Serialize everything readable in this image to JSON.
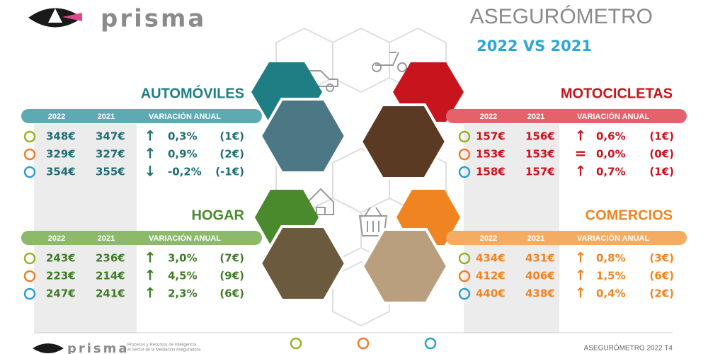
{
  "header": {
    "brand": "prisma",
    "title": "ASEGURÓMETRO",
    "subtitle": "2022 VS 2021"
  },
  "sections": [
    {
      "title": "AUTOMÓVILES",
      "columns": [
        "2022",
        "2021",
        "VARIACIÓN ANUAL"
      ],
      "rows": [
        {
          "v2022": "348€",
          "v2021": "347€",
          "trend": "↑",
          "pct": "0,3%",
          "abs": "(1€)"
        },
        {
          "v2022": "329€",
          "v2021": "327€",
          "trend": "↑",
          "pct": "0,9%",
          "abs": "(2€)"
        },
        {
          "v2022": "354€",
          "v2021": "355€",
          "trend": "↓",
          "pct": "-0,2%",
          "abs": "(-1€)"
        }
      ]
    },
    {
      "title": "MOTOCICLETAS",
      "columns": [
        "2022",
        "2021",
        "VARIACIÓN ANUAL"
      ],
      "rows": [
        {
          "v2022": "157€",
          "v2021": "156€",
          "trend": "↑",
          "pct": "0,6%",
          "abs": "(1€)"
        },
        {
          "v2022": "153€",
          "v2021": "153€",
          "trend": "=",
          "pct": "0,0%",
          "abs": "(0€)"
        },
        {
          "v2022": "158€",
          "v2021": "157€",
          "trend": "↑",
          "pct": "0,7%",
          "abs": "(1€)"
        }
      ]
    },
    {
      "title": "HOGAR",
      "columns": [
        "2022",
        "2021",
        "VARIACIÓN ANUAL"
      ],
      "rows": [
        {
          "v2022": "243€",
          "v2021": "236€",
          "trend": "↑",
          "pct": "3,0%",
          "abs": "(7€)"
        },
        {
          "v2022": "223€",
          "v2021": "214€",
          "trend": "↑",
          "pct": "4,5%",
          "abs": "(9€)"
        },
        {
          "v2022": "247€",
          "v2021": "241€",
          "trend": "↑",
          "pct": "2,3%",
          "abs": "(6€)"
        }
      ]
    },
    {
      "title": "COMERCIOS",
      "columns": [
        "2022",
        "2021",
        "VARIACIÓN ANUAL"
      ],
      "rows": [
        {
          "v2022": "434€",
          "v2021": "431€",
          "trend": "↑",
          "pct": "0,8%",
          "abs": "(3€)"
        },
        {
          "v2022": "412€",
          "v2021": "406€",
          "trend": "↑",
          "pct": "1,5%",
          "abs": "(6€)"
        },
        {
          "v2022": "440€",
          "v2021": "438€",
          "trend": "↑",
          "pct": "0,4%",
          "abs": "(2€)"
        }
      ]
    }
  ],
  "footer": {
    "brand": "prisma",
    "tagline": [
      "Procesos y Recursos de Inteligencia",
      "el Sector de la Mediación Aseguradora"
    ],
    "edition": "ASEGURÓMETRO 2022 T4"
  }
}
